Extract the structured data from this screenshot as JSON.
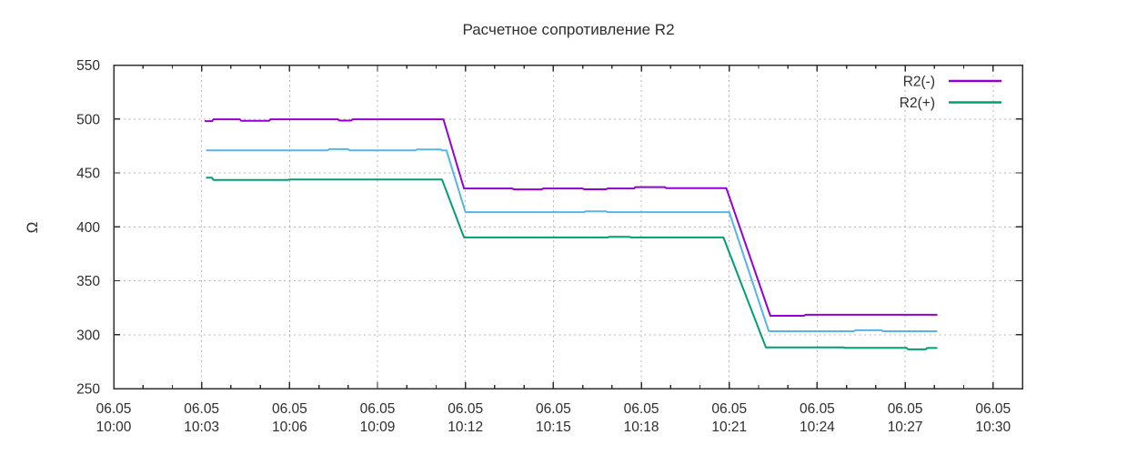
{
  "page": {
    "background": "#ffffff"
  },
  "chart_data": {
    "type": "line",
    "title": "Расчетное сопротивление R2",
    "xlabel": "",
    "ylabel": "Ω",
    "ylim": [
      250,
      550
    ],
    "y_ticks": [
      250,
      300,
      350,
      400,
      450,
      500,
      550
    ],
    "x_minutes_range": [
      0,
      31
    ],
    "minor_x_tick_every_minutes": 1,
    "grid": true,
    "x_ticks": [
      {
        "minute": 0,
        "date": "06.05",
        "time": "10:00"
      },
      {
        "minute": 3,
        "date": "06.05",
        "time": "10:03"
      },
      {
        "minute": 6,
        "date": "06.05",
        "time": "10:06"
      },
      {
        "minute": 9,
        "date": "06.05",
        "time": "10:09"
      },
      {
        "minute": 12,
        "date": "06.05",
        "time": "10:12"
      },
      {
        "minute": 15,
        "date": "06.05",
        "time": "10:15"
      },
      {
        "minute": 18,
        "date": "06.05",
        "time": "10:18"
      },
      {
        "minute": 21,
        "date": "06.05",
        "time": "10:21"
      },
      {
        "minute": 24,
        "date": "06.05",
        "time": "10:24"
      },
      {
        "minute": 27,
        "date": "06.05",
        "time": "10:27"
      },
      {
        "minute": 30,
        "date": "06.05",
        "time": "10:30"
      }
    ],
    "legend_position": "inside-top-right",
    "legend": [
      {
        "label": "R2(-)",
        "color": "#9400d3"
      },
      {
        "label": "R2(+)",
        "color": "#009e73"
      }
    ],
    "series": [
      {
        "name": "R2(-)",
        "slug": "r2-minus",
        "color": "#9400d3",
        "in_legend": true,
        "points": [
          [
            3.1,
            498
          ],
          [
            3.35,
            498
          ],
          [
            3.4,
            499.7
          ],
          [
            4.3,
            499.7
          ],
          [
            4.35,
            498.3
          ],
          [
            5.3,
            498.3
          ],
          [
            5.35,
            499.7
          ],
          [
            7.65,
            499.7
          ],
          [
            7.7,
            498.5
          ],
          [
            8.1,
            498.5
          ],
          [
            8.15,
            499.7
          ],
          [
            11.25,
            499.7
          ],
          [
            11.95,
            435.6
          ],
          [
            13.6,
            435.6
          ],
          [
            13.65,
            434.7
          ],
          [
            14.6,
            434.7
          ],
          [
            14.65,
            435.6
          ],
          [
            16.0,
            435.6
          ],
          [
            16.05,
            434.8
          ],
          [
            16.8,
            434.8
          ],
          [
            16.85,
            435.6
          ],
          [
            17.75,
            435.6
          ],
          [
            17.8,
            436.8
          ],
          [
            18.8,
            436.8
          ],
          [
            18.85,
            435.8
          ],
          [
            20.9,
            435.8
          ],
          [
            22.4,
            317.5
          ],
          [
            23.55,
            317.5
          ],
          [
            23.6,
            318.4
          ],
          [
            28.1,
            318.4
          ]
        ]
      },
      {
        "name": "",
        "slug": "middle-unlabeled",
        "color": "#56b4e9",
        "in_legend": false,
        "points": [
          [
            3.15,
            470.9
          ],
          [
            7.3,
            470.9
          ],
          [
            7.35,
            472.0
          ],
          [
            8.0,
            472.0
          ],
          [
            8.05,
            470.9
          ],
          [
            10.3,
            470.9
          ],
          [
            10.35,
            471.7
          ],
          [
            11.15,
            471.7
          ],
          [
            11.2,
            470.9
          ],
          [
            11.35,
            470.9
          ],
          [
            12.0,
            413.6
          ],
          [
            16.05,
            413.6
          ],
          [
            16.1,
            414.4
          ],
          [
            16.8,
            414.4
          ],
          [
            16.85,
            413.6
          ],
          [
            21.0,
            413.6
          ],
          [
            22.35,
            303.2
          ],
          [
            25.25,
            303.2
          ],
          [
            25.3,
            304.1
          ],
          [
            26.2,
            304.1
          ],
          [
            26.25,
            303.2
          ],
          [
            28.1,
            303.2
          ]
        ]
      },
      {
        "name": "R2(+)",
        "slug": "r2-plus",
        "color": "#009e73",
        "in_legend": true,
        "points": [
          [
            3.15,
            445.5
          ],
          [
            3.35,
            445.5
          ],
          [
            3.4,
            443.5
          ],
          [
            5.95,
            443.5
          ],
          [
            6.0,
            443.9
          ],
          [
            11.2,
            443.9
          ],
          [
            11.95,
            390.2
          ],
          [
            16.85,
            390.2
          ],
          [
            16.9,
            390.7
          ],
          [
            17.6,
            390.7
          ],
          [
            17.65,
            390.2
          ],
          [
            20.8,
            390.2
          ],
          [
            22.25,
            288.2
          ],
          [
            24.9,
            288.2
          ],
          [
            24.95,
            287.7
          ],
          [
            27.05,
            287.7
          ],
          [
            27.1,
            286.4
          ],
          [
            27.7,
            286.4
          ],
          [
            27.75,
            287.6
          ],
          [
            28.1,
            287.6
          ]
        ]
      }
    ],
    "style": {
      "grid_color": "#b5b5b5",
      "border_color": "#2f2f2f",
      "text_color": "#2e2e2e",
      "line_width": 2
    }
  }
}
